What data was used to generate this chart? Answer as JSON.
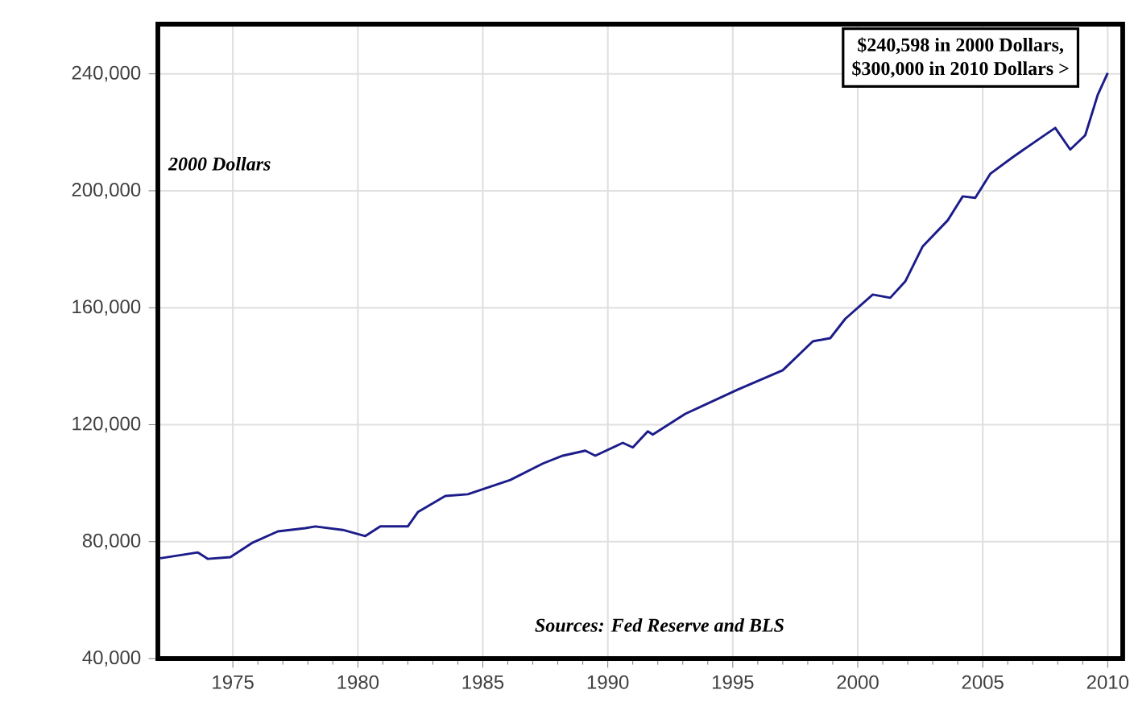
{
  "chart_data": {
    "type": "line",
    "x": [
      1972.1,
      1973.6,
      1974.0,
      1974.9,
      1975.8,
      1976.8,
      1977.9,
      1978.3,
      1979.4,
      1980.3,
      1980.9,
      1982.0,
      1982.4,
      1983.5,
      1984.4,
      1986.1,
      1987.4,
      1988.2,
      1989.1,
      1989.5,
      1990.6,
      1991.0,
      1991.6,
      1991.8,
      1993.1,
      1995.2,
      1997.0,
      1998.2,
      1998.9,
      1999.5,
      2000.6,
      2001.3,
      2001.9,
      2002.6,
      2003.6,
      2004.2,
      2004.7,
      2005.3,
      2006.2,
      2007.3,
      2007.9,
      2008.5,
      2009.1,
      2009.6,
      2010.0
    ],
    "series": [
      {
        "color": "#1c1c8a",
        "values": [
          74300,
          76300,
          74100,
          74700,
          79700,
          83500,
          84600,
          85200,
          84000,
          81900,
          85200,
          85200,
          90100,
          95600,
          96200,
          101100,
          106700,
          109400,
          111100,
          109400,
          113800,
          112200,
          117700,
          116600,
          123700,
          132000,
          138600,
          148500,
          149600,
          156200,
          164500,
          163400,
          169000,
          181000,
          189900,
          198100,
          197600,
          205800,
          211500,
          218000,
          221500,
          214100,
          219000,
          232800,
          240300
        ]
      }
    ],
    "xlim": [
      1972,
      2010.6
    ],
    "ylim": [
      40000,
      257000
    ],
    "xticks": [
      1975,
      1980,
      1985,
      1990,
      1995,
      2000,
      2005,
      2010
    ],
    "yticks": [
      {
        "value": 40000,
        "label": "40,000"
      },
      {
        "value": 80000,
        "label": "80,000"
      },
      {
        "value": 120000,
        "label": "120,000"
      },
      {
        "value": 160000,
        "label": "160,000"
      },
      {
        "value": 200000,
        "label": "200,000"
      },
      {
        "value": 240000,
        "label": "240,000"
      }
    ],
    "grid": true,
    "marker": "none",
    "line_style": "solid",
    "annotations": [
      "2000 Dollars",
      "$240,598 in 2000 Dollars,",
      "$300,000 in 2010 Dollars  >",
      "Sources: Fed Reserve and BLS"
    ]
  }
}
